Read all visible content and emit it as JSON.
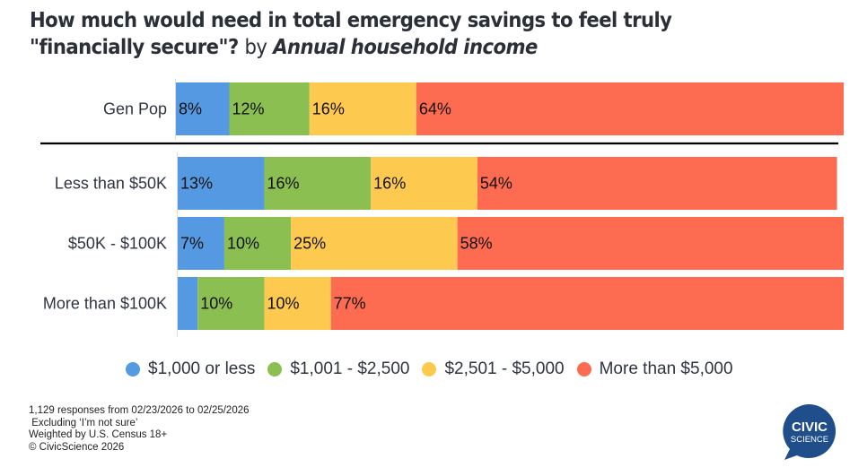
{
  "title": {
    "main": "How much would need in total emergency savings to feel truly \"financially secure\"?",
    "by": "by",
    "dimension": "Annual household income"
  },
  "chart_data": {
    "type": "bar",
    "orientation": "horizontal",
    "stacked": true,
    "normalized_percent": true,
    "title": "How much would need in total emergency savings to feel truly \"financially secure\"? by Annual household income",
    "xlabel": "",
    "ylabel": "",
    "xlim": [
      0,
      100
    ],
    "grid": false,
    "legend_position": "bottom",
    "categories": [
      "Gen Pop",
      "Less than $50K",
      "$50K - $100K",
      "More than $100K"
    ],
    "separator_after_index": 0,
    "series": [
      {
        "name": "$1,000 or less",
        "color": "#5599e2",
        "values": [
          8,
          13,
          7,
          3
        ],
        "labels": [
          "8%",
          "13%",
          "7%",
          ""
        ]
      },
      {
        "name": "$1,001 - $2,500",
        "color": "#8bbf51",
        "values": [
          12,
          16,
          10,
          10
        ],
        "labels": [
          "12%",
          "16%",
          "10%",
          "10%"
        ]
      },
      {
        "name": "$2,501 - $5,000",
        "color": "#fdc94f",
        "values": [
          16,
          16,
          25,
          10
        ],
        "labels": [
          "16%",
          "16%",
          "25%",
          "10%"
        ]
      },
      {
        "name": "More than $5,000",
        "color": "#fd6c50",
        "values": [
          64,
          54,
          58,
          77
        ],
        "labels": [
          "64%",
          "54%",
          "58%",
          "77%"
        ]
      }
    ]
  },
  "footnotes": [
    "1,129 responses from 02/23/2026 to 02/25/2026",
    " Excluding ‘I’m not sure’",
    "Weighted by U.S. Census 18+",
    "© CivicScience 2026"
  ],
  "logo": {
    "line1": "CIVIC",
    "line2": "SCIENCE",
    "color": "#1f4e8a"
  }
}
